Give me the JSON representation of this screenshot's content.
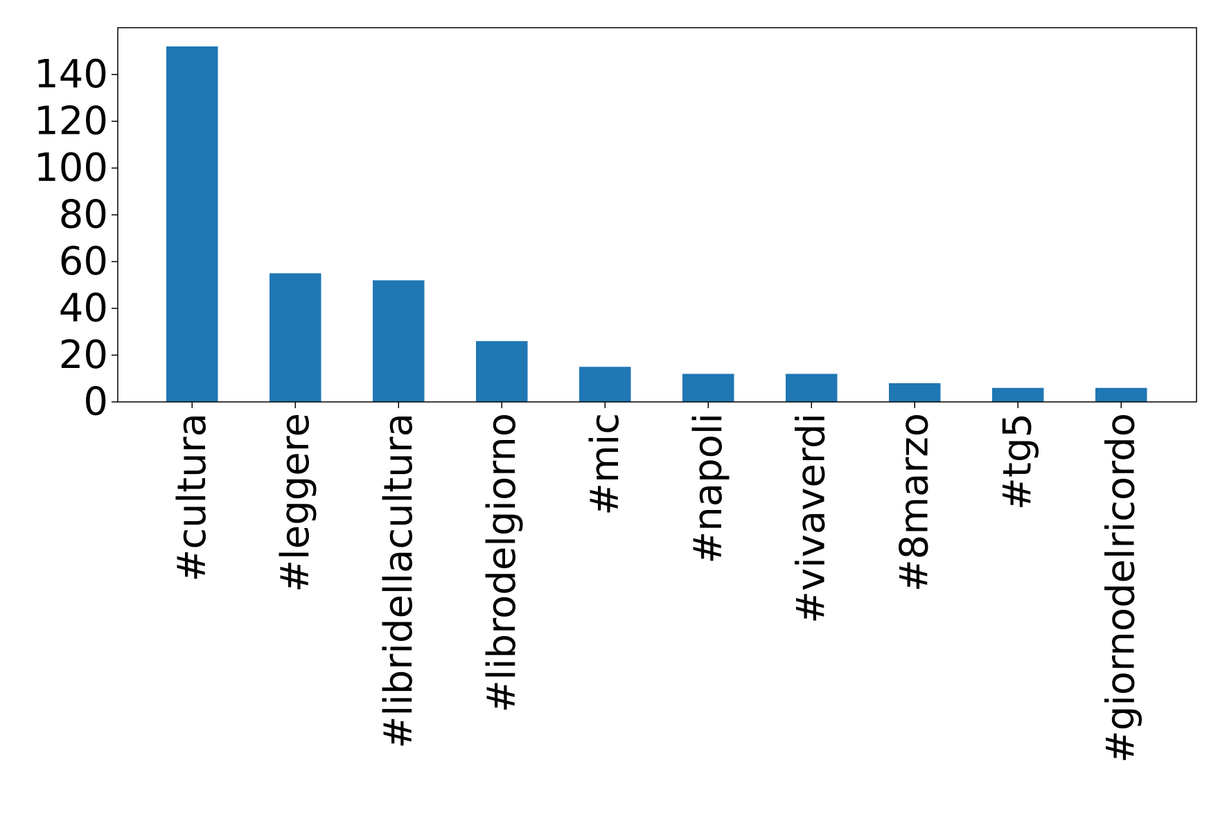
{
  "chart_data": {
    "type": "bar",
    "title": "",
    "xlabel": "",
    "ylabel": "",
    "categories": [
      "#cultura",
      "#leggere",
      "#libridellacultura",
      "#librodelgiorno",
      "#mic",
      "#napoli",
      "#vivaverdi",
      "#8marzo",
      "#tg5",
      "#giornodelricordo"
    ],
    "values": [
      152,
      55,
      52,
      26,
      15,
      12,
      12,
      8,
      6,
      6
    ],
    "ylim": [
      0,
      160
    ],
    "yticks": [
      0,
      20,
      40,
      60,
      80,
      100,
      120,
      140
    ],
    "grid": false,
    "legend": "none",
    "bar_color": "#1f77b4"
  }
}
